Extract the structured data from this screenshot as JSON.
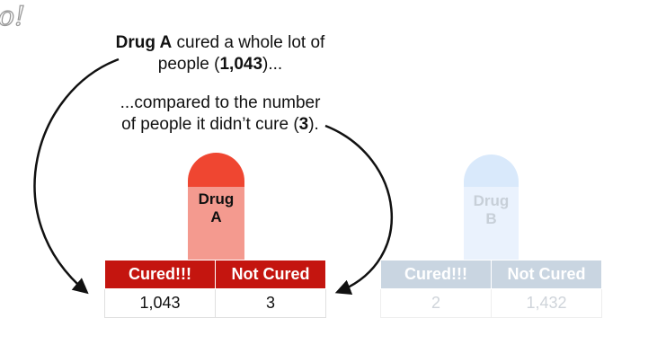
{
  "logo": {
    "text": "o!"
  },
  "caption1": {
    "bold": "Drug A",
    "mid": " cured a whole lot of",
    "pre": "people (",
    "number": "1,043",
    "post": ")..."
  },
  "caption2": {
    "line1": "...compared to the number",
    "pre": "of people it didn’t cure (",
    "number": "3",
    "post": ")."
  },
  "drug_a": {
    "pill_line1": "Drug",
    "pill_line2": "A",
    "headers": [
      "Cured!!!",
      "Not Cured"
    ],
    "values": [
      "1,043",
      "3"
    ],
    "colors": {
      "cap": "#ef4631",
      "body": "#f49a8f",
      "header": "#c4150f"
    }
  },
  "drug_b": {
    "pill_line1": "Drug",
    "pill_line2": "B",
    "headers": [
      "Cured!!!",
      "Not Cured"
    ],
    "values": [
      "2",
      "1,432"
    ],
    "colors": {
      "cap": "#d7e8fb",
      "body": "#e9f2fd",
      "header": "#c9d5e1"
    }
  }
}
